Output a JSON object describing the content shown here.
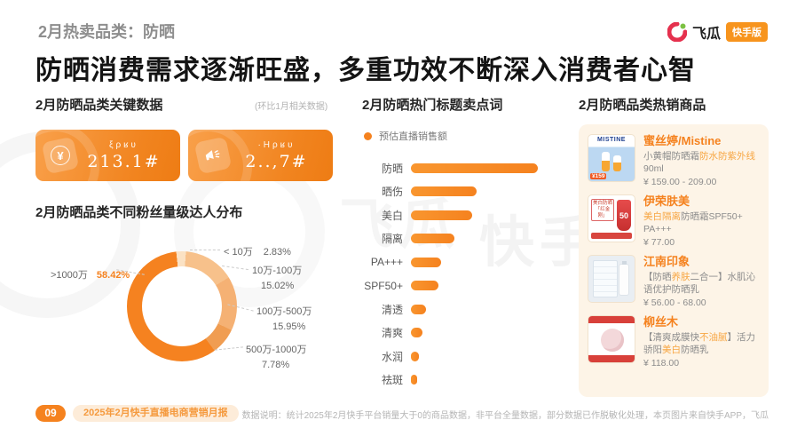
{
  "header": {
    "kicker": "2月热卖品类：防晒",
    "title": "防晒消费需求逐渐旺盛，多重功效不断深入消费者心智",
    "logo": {
      "brand": "飞瓜",
      "badge": "快手版"
    }
  },
  "left": {
    "key_data_title": "2月防晒品类关键数据",
    "key_data_note": "(环比1月相关数据)",
    "stat_cards": [
      {
        "icon": "yuan-coin-icon",
        "label": "ξρʁʋ",
        "value": "213.1#"
      },
      {
        "icon": "megaphone-icon",
        "label": "·Ηρʁʋ",
        "value": "2..,7#"
      }
    ],
    "fans_title": "2月防晒品类不同粉丝量级达人分布"
  },
  "middle": {
    "title": "2月防晒热门标题卖点词",
    "legend": "预估直播销售额"
  },
  "right": {
    "title": "2月防晒品类热销商品",
    "products": [
      {
        "brand": "蜜丝婷/Mistine",
        "desc_parts": [
          {
            "text": "小黄帽防晒霜",
            "hl": false
          },
          {
            "text": "防水防紫外线",
            "hl": true
          },
          {
            "text": "90ml",
            "hl": false
          }
        ],
        "price": "¥ 159.00 - 209.00",
        "thumb": {
          "style": 0,
          "brand_text": "MISTINE",
          "tag": "¥159"
        }
      },
      {
        "brand": "伊荣肤美",
        "desc_parts": [
          {
            "text": "美白隔离",
            "hl": true
          },
          {
            "text": "防晒霜SPF50+ PA+++",
            "hl": false
          }
        ],
        "price": "¥ 77.00",
        "thumb": {
          "style": 1,
          "box_text": "美白防晒「红金刚」",
          "tube_text": "50"
        }
      },
      {
        "brand": "江南印象",
        "desc_parts": [
          {
            "text": "【防晒",
            "hl": false
          },
          {
            "text": "养肤",
            "hl": true
          },
          {
            "text": "二合一】水肌沁语优护防晒乳",
            "hl": false
          }
        ],
        "price": "¥ 56.00 - 68.00",
        "thumb": {
          "style": 2
        }
      },
      {
        "brand": "柳丝木",
        "desc_parts": [
          {
            "text": "【清爽成膜快",
            "hl": false
          },
          {
            "text": "不油腻",
            "hl": true
          },
          {
            "text": "】活力骄阳",
            "hl": false
          },
          {
            "text": "美白",
            "hl": true
          },
          {
            "text": "防晒乳",
            "hl": false
          }
        ],
        "price": "¥ 118.00",
        "thumb": {
          "style": 3
        }
      }
    ]
  },
  "chart_data": [
    {
      "type": "pie",
      "subtype": "donut",
      "title": "2月防晒品类不同粉丝量级达人分布",
      "categories": [
        "< 10万",
        "10万-100万",
        "100万-500万",
        "500万-1000万",
        ">1000万"
      ],
      "values": [
        2.83,
        15.02,
        15.95,
        7.78,
        58.42
      ],
      "unit": "%",
      "labels": [
        "2.83%",
        "15.02%",
        "15.95%",
        "7.78%",
        "58.42%"
      ],
      "colors": [
        "#fbe2c4",
        "#f7c18b",
        "#f5b174",
        "#f09d52",
        "#f58220"
      ],
      "highlight_index": 4,
      "legend_position": "outside-leader-lines"
    },
    {
      "type": "bar",
      "orientation": "horizontal",
      "title": "2月防晒热门标题卖点词",
      "legend": [
        "预估直播销售额"
      ],
      "categories": [
        "防晒",
        "晒伤",
        "美白",
        "隔离",
        "PA+++",
        "SPF50+",
        "清透",
        "清爽",
        "水润",
        "祛斑"
      ],
      "values": [
        100,
        52,
        48,
        34,
        24,
        22,
        12,
        9,
        6,
        5
      ],
      "value_note": "relative scale, no axis or data labels shown",
      "bar_color": "#f5821f",
      "grid": false
    }
  ],
  "watermarks": {
    "wm1": "飞瓜",
    "wm2": "快手"
  },
  "footer": {
    "page": "09",
    "report": "2025年2月快手直播电商营销月报",
    "note": "数据说明：统计2025年2月快手平台销量大于0的商品数据，非平台全量数据，部分数据已作脱敏化处理，本页图片来自快手APP，飞瓜"
  },
  "colors": {
    "accent": "#f5821f",
    "highlight_text": "#f7a643",
    "badge": "#f7941d",
    "panel_bg": "#fdf4e7"
  }
}
